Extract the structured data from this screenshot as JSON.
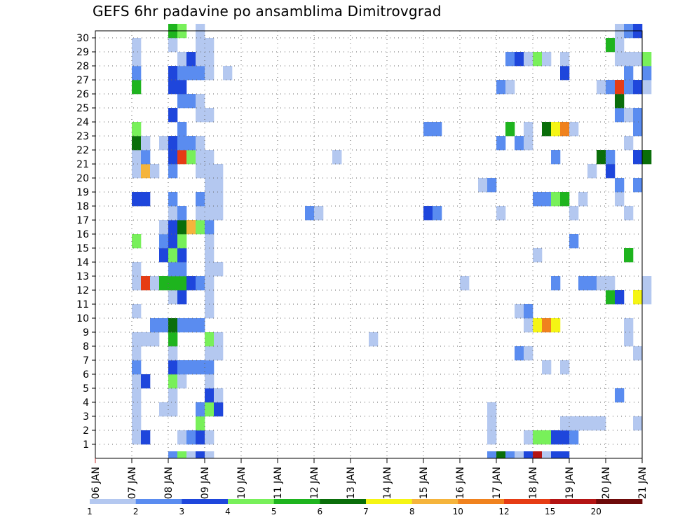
{
  "chart_data": {
    "type": "heatmap",
    "title": "GEFS 6hr padavine po ansamblima Dimitrovgrad",
    "x_tick_labels": [
      "06 JAN",
      "07 JAN",
      "08 JAN",
      "09 JAN",
      "10 JAN",
      "11 JAN",
      "12 JAN",
      "13 JAN",
      "14 JAN",
      "15 JAN",
      "16 JAN",
      "17 JAN",
      "18 JAN",
      "19 JAN",
      "20 JAN",
      "21 JAN"
    ],
    "y_tick_labels": [
      "1",
      "2",
      "3",
      "4",
      "5",
      "6",
      "7",
      "8",
      "9",
      "10",
      "11",
      "12",
      "13",
      "14",
      "15",
      "16",
      "17",
      "18",
      "19",
      "20",
      "21",
      "22",
      "23",
      "24",
      "25",
      "26",
      "27",
      "28",
      "29",
      "30"
    ],
    "y_range": [
      0,
      30
    ],
    "time_step_hours": 6,
    "grid": true,
    "legend": {
      "placement": "bottom",
      "labels": [
        "1",
        "2",
        "3",
        "4",
        "5",
        "6",
        "7",
        "8",
        "10",
        "12",
        "15",
        "20"
      ],
      "colors": [
        "#b4c8f0",
        "#5a8cf0",
        "#1e46dc",
        "#78f05a",
        "#1eb41e",
        "#0a6e0a",
        "#f5f514",
        "#f5b43c",
        "#f0821e",
        "#e63c14",
        "#b41414",
        "#6e0a0a"
      ]
    },
    "cell_format": "[day_offset_from_06_JAN, hour (0|6|12|18), member_row (0..30), category_index (0..11)]",
    "cells": [
      [
        1,
        0,
        1,
        0
      ],
      [
        1,
        0,
        2,
        0
      ],
      [
        1,
        0,
        3,
        0
      ],
      [
        1,
        0,
        4,
        0
      ],
      [
        1,
        0,
        5,
        0
      ],
      [
        1,
        0,
        6,
        1
      ],
      [
        1,
        0,
        7,
        0
      ],
      [
        1,
        0,
        8,
        0
      ],
      [
        1,
        0,
        10,
        0
      ],
      [
        1,
        0,
        12,
        0
      ],
      [
        1,
        0,
        13,
        0
      ],
      [
        1,
        0,
        15,
        3
      ],
      [
        1,
        0,
        18,
        2
      ],
      [
        1,
        0,
        20,
        0
      ],
      [
        1,
        0,
        21,
        0
      ],
      [
        1,
        0,
        22,
        5
      ],
      [
        1,
        0,
        23,
        3
      ],
      [
        1,
        0,
        26,
        4
      ],
      [
        1,
        0,
        27,
        1
      ],
      [
        1,
        0,
        28,
        0
      ],
      [
        1,
        0,
        29,
        0
      ],
      [
        1,
        6,
        1,
        2
      ],
      [
        1,
        6,
        5,
        2
      ],
      [
        1,
        6,
        8,
        0
      ],
      [
        1,
        6,
        12,
        9
      ],
      [
        1,
        6,
        18,
        2
      ],
      [
        1,
        6,
        20,
        7
      ],
      [
        1,
        6,
        21,
        1
      ],
      [
        1,
        6,
        22,
        0
      ],
      [
        1,
        12,
        8,
        0
      ],
      [
        1,
        12,
        9,
        1
      ],
      [
        1,
        12,
        12,
        0
      ],
      [
        1,
        12,
        20,
        0
      ],
      [
        1,
        18,
        3,
        0
      ],
      [
        1,
        18,
        9,
        1
      ],
      [
        1,
        18,
        12,
        4
      ],
      [
        1,
        18,
        14,
        2
      ],
      [
        1,
        18,
        15,
        1
      ],
      [
        1,
        18,
        16,
        0
      ],
      [
        1,
        18,
        22,
        0
      ],
      [
        2,
        0,
        0,
        1
      ],
      [
        2,
        0,
        3,
        0
      ],
      [
        2,
        0,
        4,
        0
      ],
      [
        2,
        0,
        5,
        3
      ],
      [
        2,
        0,
        6,
        2
      ],
      [
        2,
        0,
        7,
        0
      ],
      [
        2,
        0,
        8,
        4
      ],
      [
        2,
        0,
        9,
        5
      ],
      [
        2,
        0,
        11,
        0
      ],
      [
        2,
        0,
        12,
        4
      ],
      [
        2,
        0,
        13,
        1
      ],
      [
        2,
        0,
        14,
        3
      ],
      [
        2,
        0,
        15,
        2
      ],
      [
        2,
        0,
        16,
        2
      ],
      [
        2,
        0,
        17,
        0
      ],
      [
        2,
        0,
        18,
        1
      ],
      [
        2,
        0,
        20,
        1
      ],
      [
        2,
        0,
        21,
        2
      ],
      [
        2,
        0,
        22,
        2
      ],
      [
        2,
        0,
        24,
        2
      ],
      [
        2,
        0,
        26,
        2
      ],
      [
        2,
        0,
        27,
        2
      ],
      [
        2,
        0,
        29,
        0
      ],
      [
        2,
        0,
        30,
        4
      ],
      [
        2,
        6,
        0,
        3
      ],
      [
        2,
        6,
        1,
        0
      ],
      [
        2,
        6,
        5,
        0
      ],
      [
        2,
        6,
        6,
        1
      ],
      [
        2,
        6,
        9,
        1
      ],
      [
        2,
        6,
        11,
        2
      ],
      [
        2,
        6,
        12,
        4
      ],
      [
        2,
        6,
        13,
        1
      ],
      [
        2,
        6,
        14,
        2
      ],
      [
        2,
        6,
        15,
        3
      ],
      [
        2,
        6,
        16,
        5
      ],
      [
        2,
        6,
        17,
        1
      ],
      [
        2,
        6,
        21,
        9
      ],
      [
        2,
        6,
        22,
        1
      ],
      [
        2,
        6,
        23,
        1
      ],
      [
        2,
        6,
        25,
        1
      ],
      [
        2,
        6,
        26,
        2
      ],
      [
        2,
        6,
        27,
        1
      ],
      [
        2,
        6,
        28,
        0
      ],
      [
        2,
        6,
        30,
        3
      ],
      [
        2,
        12,
        0,
        0
      ],
      [
        2,
        12,
        1,
        1
      ],
      [
        2,
        12,
        6,
        1
      ],
      [
        2,
        12,
        9,
        1
      ],
      [
        2,
        12,
        12,
        2
      ],
      [
        2,
        12,
        16,
        7
      ],
      [
        2,
        12,
        21,
        3
      ],
      [
        2,
        12,
        22,
        1
      ],
      [
        2,
        12,
        25,
        1
      ],
      [
        2,
        12,
        27,
        1
      ],
      [
        2,
        12,
        28,
        2
      ],
      [
        2,
        18,
        0,
        2
      ],
      [
        2,
        18,
        1,
        2
      ],
      [
        2,
        18,
        2,
        3
      ],
      [
        2,
        18,
        3,
        1
      ],
      [
        2,
        18,
        6,
        1
      ],
      [
        2,
        18,
        9,
        1
      ],
      [
        2,
        18,
        12,
        1
      ],
      [
        2,
        18,
        16,
        3
      ],
      [
        2,
        18,
        17,
        0
      ],
      [
        2,
        18,
        18,
        1
      ],
      [
        2,
        18,
        20,
        0
      ],
      [
        2,
        18,
        21,
        0
      ],
      [
        2,
        18,
        22,
        0
      ],
      [
        2,
        18,
        24,
        0
      ],
      [
        2,
        18,
        25,
        0
      ],
      [
        2,
        18,
        27,
        1
      ],
      [
        2,
        18,
        28,
        0
      ],
      [
        2,
        18,
        29,
        0
      ],
      [
        2,
        18,
        30,
        0
      ],
      [
        3,
        0,
        0,
        0
      ],
      [
        3,
        0,
        1,
        0
      ],
      [
        3,
        0,
        3,
        3
      ],
      [
        3,
        0,
        4,
        2
      ],
      [
        3,
        0,
        5,
        0
      ],
      [
        3,
        0,
        6,
        1
      ],
      [
        3,
        0,
        7,
        0
      ],
      [
        3,
        0,
        8,
        3
      ],
      [
        3,
        0,
        10,
        0
      ],
      [
        3,
        0,
        11,
        0
      ],
      [
        3,
        0,
        12,
        0
      ],
      [
        3,
        0,
        13,
        0
      ],
      [
        3,
        0,
        14,
        0
      ],
      [
        3,
        0,
        15,
        0
      ],
      [
        3,
        0,
        16,
        1
      ],
      [
        3,
        0,
        17,
        0
      ],
      [
        3,
        0,
        18,
        0
      ],
      [
        3,
        0,
        19,
        0
      ],
      [
        3,
        0,
        20,
        0
      ],
      [
        3,
        0,
        21,
        0
      ],
      [
        3,
        0,
        24,
        0
      ],
      [
        3,
        0,
        27,
        0
      ],
      [
        3,
        0,
        28,
        0
      ],
      [
        3,
        0,
        29,
        0
      ],
      [
        3,
        6,
        3,
        2
      ],
      [
        3,
        6,
        4,
        0
      ],
      [
        3,
        6,
        7,
        0
      ],
      [
        3,
        6,
        8,
        0
      ],
      [
        3,
        6,
        13,
        0
      ],
      [
        3,
        6,
        17,
        0
      ],
      [
        3,
        6,
        18,
        0
      ],
      [
        3,
        6,
        19,
        0
      ],
      [
        3,
        6,
        20,
        0
      ],
      [
        3,
        12,
        27,
        0
      ],
      [
        6,
        12,
        21,
        0
      ],
      [
        6,
        12,
        21,
        0
      ],
      [
        7,
        12,
        8,
        0
      ],
      [
        5,
        18,
        17,
        1
      ],
      [
        6,
        0,
        17,
        0
      ],
      [
        9,
        0,
        17,
        2
      ],
      [
        9,
        6,
        17,
        1
      ],
      [
        9,
        0,
        23,
        1
      ],
      [
        9,
        6,
        23,
        1
      ],
      [
        10,
        0,
        12,
        0
      ],
      [
        10,
        12,
        19,
        0
      ],
      [
        10,
        18,
        0,
        1
      ],
      [
        10,
        18,
        1,
        0
      ],
      [
        10,
        18,
        2,
        0
      ],
      [
        10,
        18,
        3,
        0
      ],
      [
        10,
        18,
        19,
        1
      ],
      [
        11,
        0,
        0,
        5
      ],
      [
        11,
        0,
        17,
        0
      ],
      [
        11,
        0,
        22,
        1
      ],
      [
        11,
        0,
        26,
        1
      ],
      [
        11,
        6,
        0,
        1
      ],
      [
        11,
        6,
        23,
        4
      ],
      [
        11,
        6,
        26,
        0
      ],
      [
        11,
        6,
        28,
        1
      ],
      [
        11,
        12,
        0,
        0
      ],
      [
        11,
        12,
        7,
        1
      ],
      [
        11,
        12,
        10,
        0
      ],
      [
        11,
        12,
        22,
        1
      ],
      [
        11,
        12,
        28,
        2
      ],
      [
        11,
        18,
        0,
        2
      ],
      [
        11,
        18,
        1,
        0
      ],
      [
        11,
        18,
        7,
        0
      ],
      [
        11,
        18,
        9,
        0
      ],
      [
        11,
        18,
        10,
        1
      ],
      [
        11,
        18,
        22,
        0
      ],
      [
        11,
        18,
        23,
        0
      ],
      [
        11,
        18,
        28,
        0
      ],
      [
        12,
        0,
        0,
        10
      ],
      [
        12,
        0,
        1,
        3
      ],
      [
        12,
        0,
        9,
        6
      ],
      [
        12,
        0,
        14,
        0
      ],
      [
        12,
        0,
        18,
        1
      ],
      [
        12,
        0,
        28,
        3
      ],
      [
        12,
        6,
        0,
        0
      ],
      [
        12,
        6,
        1,
        3
      ],
      [
        12,
        6,
        6,
        0
      ],
      [
        12,
        6,
        9,
        8
      ],
      [
        12,
        6,
        18,
        1
      ],
      [
        12,
        6,
        23,
        5
      ],
      [
        12,
        6,
        28,
        0
      ],
      [
        12,
        12,
        0,
        2
      ],
      [
        12,
        12,
        1,
        2
      ],
      [
        12,
        12,
        9,
        6
      ],
      [
        12,
        12,
        12,
        1
      ],
      [
        12,
        12,
        18,
        3
      ],
      [
        12,
        12,
        21,
        1
      ],
      [
        12,
        12,
        23,
        6
      ],
      [
        12,
        18,
        0,
        2
      ],
      [
        12,
        18,
        1,
        2
      ],
      [
        12,
        18,
        2,
        0
      ],
      [
        12,
        18,
        6,
        0
      ],
      [
        12,
        18,
        18,
        4
      ],
      [
        12,
        18,
        23,
        8
      ],
      [
        12,
        18,
        27,
        2
      ],
      [
        12,
        18,
        28,
        0
      ],
      [
        13,
        0,
        1,
        1
      ],
      [
        13,
        0,
        2,
        0
      ],
      [
        13,
        0,
        15,
        1
      ],
      [
        13,
        0,
        17,
        0
      ],
      [
        13,
        0,
        23,
        0
      ],
      [
        13,
        6,
        2,
        0
      ],
      [
        13,
        6,
        12,
        1
      ],
      [
        13,
        6,
        18,
        0
      ],
      [
        13,
        12,
        2,
        0
      ],
      [
        13,
        12,
        12,
        1
      ],
      [
        13,
        12,
        20,
        0
      ],
      [
        13,
        18,
        2,
        0
      ],
      [
        13,
        18,
        12,
        0
      ],
      [
        13,
        18,
        21,
        5
      ],
      [
        13,
        18,
        26,
        0
      ],
      [
        14,
        0,
        11,
        4
      ],
      [
        14,
        0,
        12,
        0
      ],
      [
        14,
        0,
        20,
        2
      ],
      [
        14,
        0,
        21,
        1
      ],
      [
        14,
        0,
        26,
        1
      ],
      [
        14,
        0,
        29,
        4
      ],
      [
        14,
        6,
        4,
        1
      ],
      [
        14,
        6,
        11,
        2
      ],
      [
        14,
        6,
        18,
        0
      ],
      [
        14,
        6,
        19,
        1
      ],
      [
        14,
        6,
        24,
        1
      ],
      [
        14,
        6,
        25,
        5
      ],
      [
        14,
        6,
        26,
        9
      ],
      [
        14,
        6,
        28,
        0
      ],
      [
        14,
        6,
        29,
        0
      ],
      [
        14,
        6,
        30,
        0
      ],
      [
        14,
        12,
        8,
        0
      ],
      [
        14,
        12,
        9,
        0
      ],
      [
        14,
        12,
        14,
        4
      ],
      [
        14,
        12,
        17,
        0
      ],
      [
        14,
        12,
        22,
        0
      ],
      [
        14,
        12,
        24,
        0
      ],
      [
        14,
        12,
        26,
        1
      ],
      [
        14,
        12,
        27,
        1
      ],
      [
        14,
        12,
        28,
        0
      ],
      [
        14,
        12,
        30,
        1
      ],
      [
        14,
        18,
        2,
        0
      ],
      [
        14,
        18,
        7,
        0
      ],
      [
        14,
        18,
        11,
        6
      ],
      [
        14,
        18,
        19,
        1
      ],
      [
        14,
        18,
        21,
        2
      ],
      [
        14,
        18,
        23,
        1
      ],
      [
        14,
        18,
        24,
        1
      ],
      [
        14,
        18,
        26,
        2
      ],
      [
        14,
        18,
        28,
        0
      ],
      [
        14,
        18,
        30,
        2
      ],
      [
        15,
        0,
        11,
        0
      ],
      [
        15,
        0,
        12,
        0
      ],
      [
        15,
        0,
        21,
        5
      ],
      [
        15,
        0,
        26,
        0
      ],
      [
        15,
        0,
        27,
        1
      ],
      [
        15,
        0,
        28,
        3
      ]
    ]
  }
}
